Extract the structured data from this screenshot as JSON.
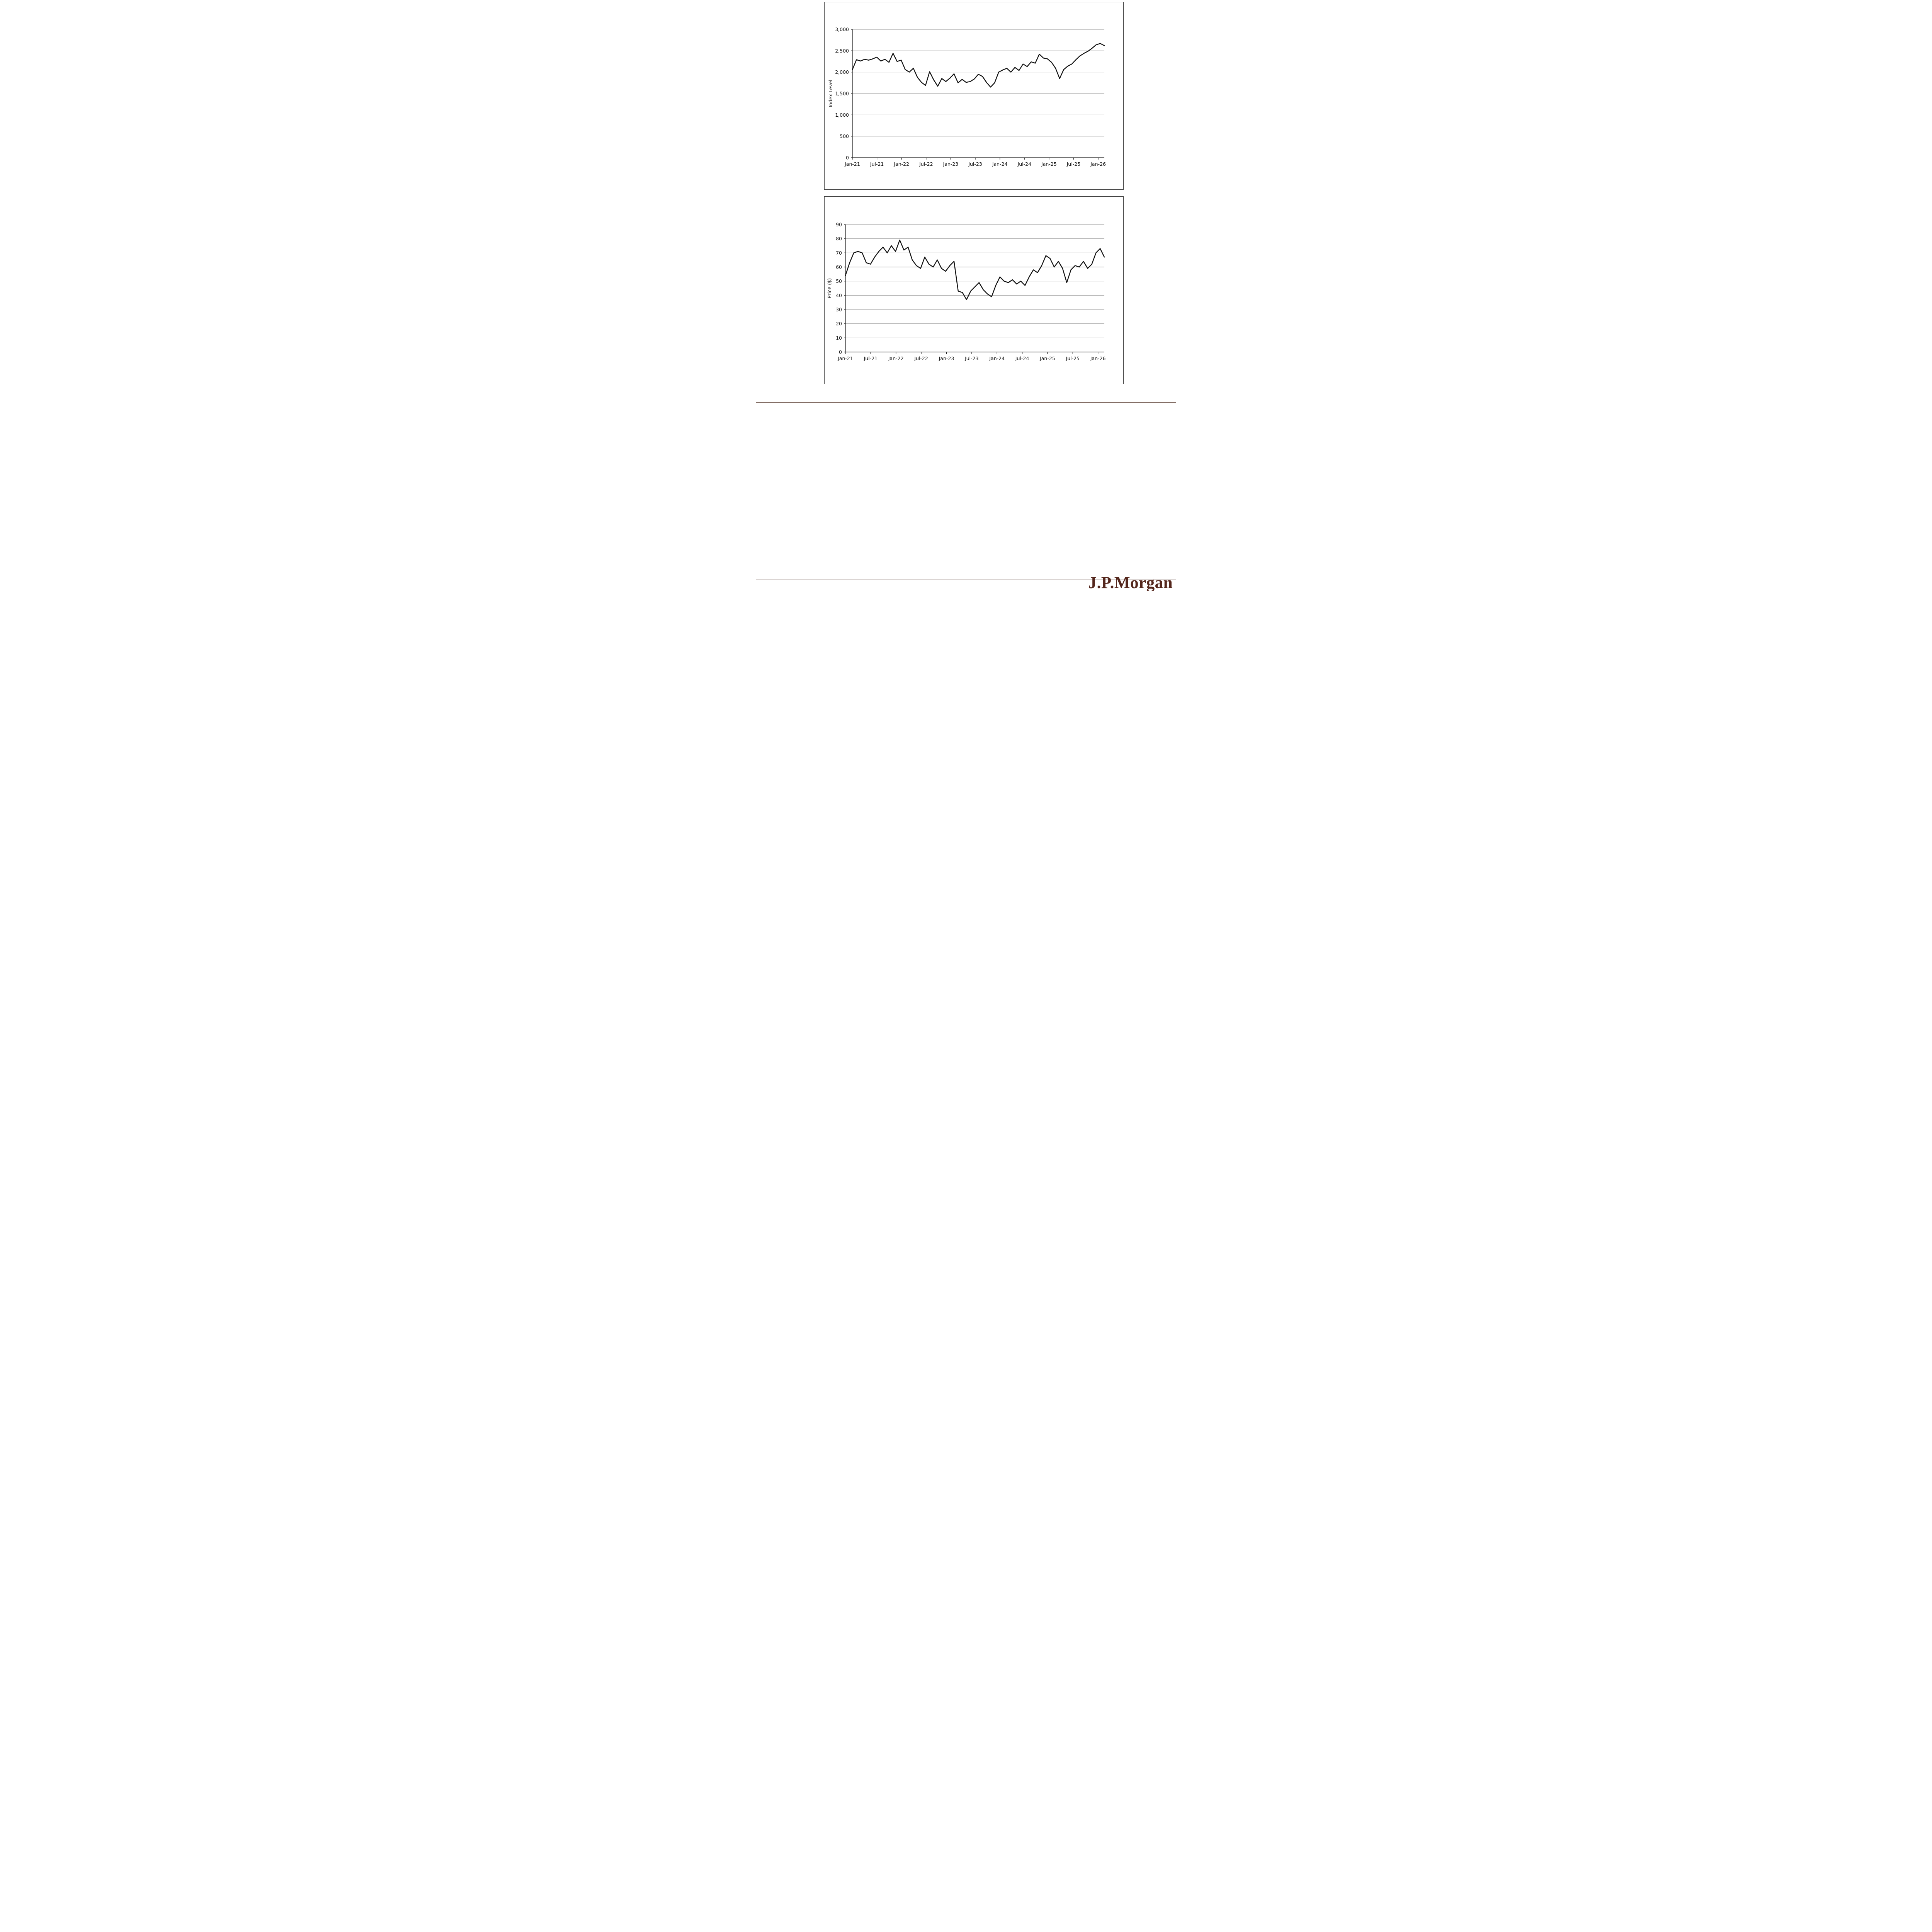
{
  "page": {
    "logo_text": "J.P.Morgan",
    "logo_color": "#54261c",
    "divider_color": "#6b5247",
    "background": "#ffffff"
  },
  "chart_data": [
    {
      "type": "line",
      "title": "",
      "xlabel": "",
      "ylabel": "Index Level",
      "x_unit": "months since Jan-2021",
      "xlim": [
        0,
        61.5
      ],
      "ylim": [
        0,
        3000
      ],
      "yticks": [
        0,
        500,
        1000,
        1500,
        2000,
        2500,
        3000
      ],
      "ytick_labels": [
        "0",
        "500",
        "1,000",
        "1,500",
        "2,000",
        "2,500",
        "3,000"
      ],
      "xticks": [
        0,
        6,
        12,
        18,
        24,
        30,
        36,
        42,
        48,
        54,
        60
      ],
      "xtick_labels": [
        "Jan-21",
        "Jul-21",
        "Jan-22",
        "Jul-22",
        "Jan-23",
        "Jul-23",
        "Jan-24",
        "Jul-24",
        "Jan-25",
        "Jul-25",
        "Jan-26"
      ],
      "grid": true,
      "legend": "none",
      "line_color": "#111111",
      "grid_color": "#9a9a9a",
      "axis_color": "#222222",
      "series": [
        {
          "name": "Index Level",
          "values": [
            2060,
            2290,
            2260,
            2300,
            2280,
            2310,
            2350,
            2260,
            2300,
            2230,
            2440,
            2250,
            2280,
            2060,
            2000,
            2090,
            1880,
            1760,
            1690,
            2010,
            1820,
            1670,
            1850,
            1780,
            1860,
            1960,
            1750,
            1830,
            1760,
            1780,
            1840,
            1950,
            1900,
            1760,
            1650,
            1750,
            2000,
            2050,
            2090,
            2000,
            2110,
            2040,
            2190,
            2130,
            2240,
            2210,
            2420,
            2330,
            2310,
            2230,
            2090,
            1850,
            2060,
            2140,
            2190,
            2290,
            2380,
            2440,
            2490,
            2560,
            2640,
            2670,
            2620
          ]
        }
      ]
    },
    {
      "type": "line",
      "title": "",
      "xlabel": "",
      "ylabel": "Price ($)",
      "x_unit": "months since Jan-2021",
      "xlim": [
        0,
        61.5
      ],
      "ylim": [
        0,
        90
      ],
      "yticks": [
        0,
        10,
        20,
        30,
        40,
        50,
        60,
        70,
        80,
        90
      ],
      "ytick_labels": [
        "0",
        "10",
        "20",
        "30",
        "40",
        "50",
        "60",
        "70",
        "80",
        "90"
      ],
      "xticks": [
        0,
        6,
        12,
        18,
        24,
        30,
        36,
        42,
        48,
        54,
        60
      ],
      "xtick_labels": [
        "Jan-21",
        "Jul-21",
        "Jan-22",
        "Jul-22",
        "Jan-23",
        "Jul-23",
        "Jan-24",
        "Jul-24",
        "Jan-25",
        "Jul-25",
        "Jan-26"
      ],
      "grid": true,
      "legend": "none",
      "line_color": "#111111",
      "grid_color": "#9a9a9a",
      "axis_color": "#222222",
      "series": [
        {
          "name": "Price ($)",
          "values": [
            54,
            63,
            70,
            71,
            70,
            63,
            62,
            67,
            71,
            74,
            70,
            75,
            71,
            79,
            72,
            74,
            65,
            61,
            59,
            67,
            62,
            60,
            65,
            59,
            57,
            61,
            64,
            43,
            42,
            37,
            43,
            46,
            49,
            44,
            41,
            39,
            47,
            53,
            50,
            49,
            51,
            48,
            50,
            47,
            53,
            58,
            56,
            61,
            68,
            66,
            60,
            64,
            59,
            49,
            58,
            61,
            60,
            64,
            59,
            62,
            70,
            73,
            67
          ]
        }
      ]
    }
  ]
}
